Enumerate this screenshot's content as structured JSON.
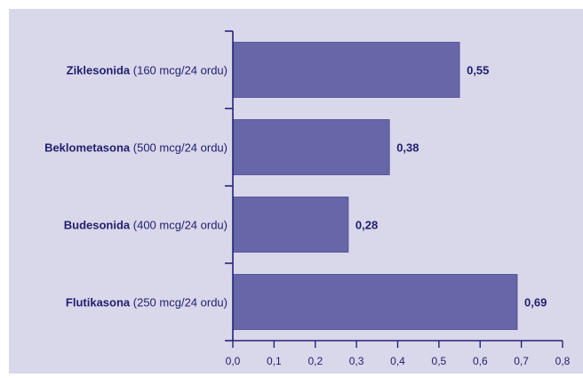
{
  "chart_data": {
    "type": "bar",
    "orientation": "horizontal",
    "categories": [
      {
        "name": "Ziklesonida",
        "dose": "(160 mcg/24 ordu)"
      },
      {
        "name": "Beklometasona",
        "dose": "(500 mcg/24 ordu)"
      },
      {
        "name": "Budesonida",
        "dose": "(400 mcg/24 ordu)"
      },
      {
        "name": "Flutikasona",
        "dose": "(250 mcg/24 ordu)"
      }
    ],
    "values": [
      0.55,
      0.38,
      0.28,
      0.69
    ],
    "value_labels": [
      "0,55",
      "0,38",
      "0,28",
      "0,69"
    ],
    "xlim": [
      0,
      0.8
    ],
    "xticks": [
      0,
      0.1,
      0.2,
      0.3,
      0.4,
      0.5,
      0.6,
      0.7,
      0.8
    ],
    "xtick_labels": [
      "0,0",
      "0,1",
      "0,2",
      "0,3",
      "0,4",
      "0,5",
      "0,6",
      "0,7",
      "0,8"
    ],
    "title": "",
    "xlabel": "",
    "ylabel": "",
    "grid": false,
    "legend": "none",
    "colors": {
      "page_background": "#ffffff",
      "plot_background": "#d9d7ea",
      "bar_fill": "#6666a8",
      "bar_stroke": "#4a4a90",
      "axis": "#23237a",
      "text": "#1f1f6e"
    }
  }
}
